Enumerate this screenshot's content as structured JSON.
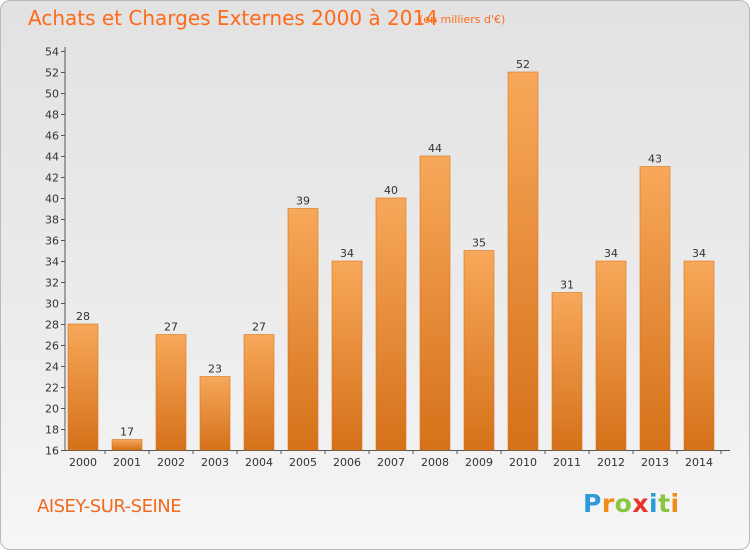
{
  "chart_data": {
    "type": "bar",
    "title": "Achats et Charges Externes 2000 à 2014",
    "subtitle": "(en milliers d'€)",
    "categories": [
      "2000",
      "2001",
      "2002",
      "2003",
      "2004",
      "2005",
      "2006",
      "2007",
      "2008",
      "2009",
      "2010",
      "2011",
      "2012",
      "2013",
      "2014"
    ],
    "values": [
      28,
      17,
      27,
      23,
      27,
      39,
      34,
      40,
      44,
      35,
      52,
      31,
      34,
      43,
      34
    ],
    "ylim": [
      16,
      54
    ],
    "yticks": [
      16,
      18,
      20,
      22,
      24,
      26,
      28,
      30,
      32,
      34,
      36,
      38,
      40,
      42,
      44,
      46,
      48,
      50,
      52,
      54
    ],
    "grid": false,
    "bar_color": "#f39c47",
    "bar_color_dark": "#d9751c"
  },
  "footer": {
    "commune": "AISEY-SUR-SEINE",
    "logo_letters": [
      {
        "ch": "P",
        "color": "#2d9bd8"
      },
      {
        "ch": "r",
        "color": "#f28b18"
      },
      {
        "ch": "o",
        "color": "#8cc63f"
      },
      {
        "ch": "x",
        "color": "#e8332a"
      },
      {
        "ch": "i",
        "color": "#2d9bd8"
      },
      {
        "ch": "t",
        "color": "#8cc63f"
      },
      {
        "ch": "i",
        "color": "#f28b18"
      }
    ]
  }
}
